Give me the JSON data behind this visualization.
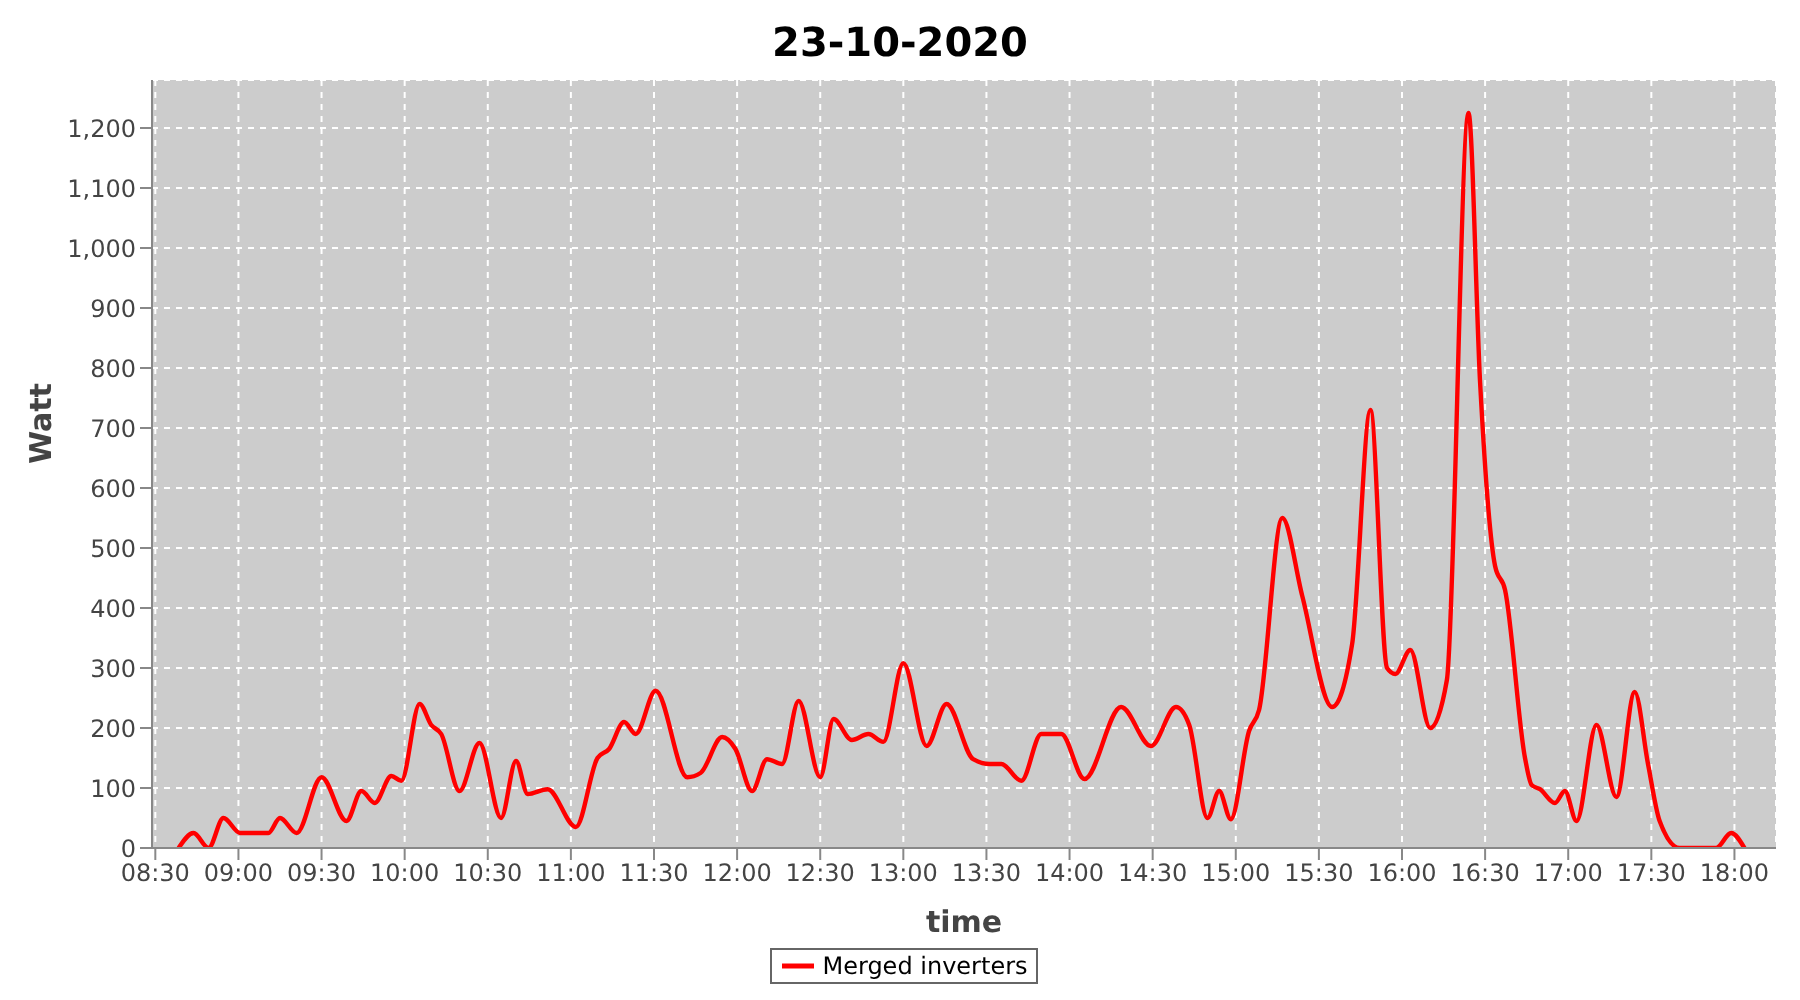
{
  "chart_data": {
    "type": "line",
    "title": "23-10-2020",
    "xlabel": "time",
    "ylabel": "Watt",
    "x": [
      8.64,
      8.73,
      8.82,
      8.91,
      9.01,
      9.12,
      9.18,
      9.25,
      9.35,
      9.5,
      9.65,
      9.74,
      9.82,
      9.92,
      9.98,
      10.09,
      10.16,
      10.22,
      10.33,
      10.45,
      10.58,
      10.67,
      10.74,
      10.86,
      11.03,
      11.16,
      11.23,
      11.32,
      11.39,
      11.51,
      11.7,
      11.78,
      11.91,
      11.99,
      12.09,
      12.18,
      12.27,
      12.37,
      12.5,
      12.58,
      12.69,
      12.79,
      12.88,
      13.0,
      13.14,
      13.26,
      13.42,
      13.52,
      13.59,
      13.71,
      13.83,
      13.95,
      14.09,
      14.31,
      14.49,
      14.64,
      14.72,
      14.83,
      14.9,
      14.97,
      15.08,
      15.14,
      15.28,
      15.4,
      15.58,
      15.7,
      15.81,
      15.91,
      15.96,
      16.05,
      16.17,
      16.27,
      16.4,
      16.47,
      16.56,
      16.62,
      16.74,
      16.78,
      16.83,
      16.92,
      16.98,
      17.05,
      17.17,
      17.29,
      17.4,
      17.48,
      17.55,
      17.67,
      17.82,
      17.89,
      17.98,
      18.06
    ],
    "series": [
      {
        "name": "Merged inverters",
        "color": "#ff0000",
        "values": [
          0,
          25,
          0,
          50,
          25,
          25,
          25,
          50,
          25,
          118,
          45,
          95,
          75,
          120,
          112,
          240,
          205,
          190,
          95,
          175,
          50,
          145,
          90,
          98,
          35,
          150,
          165,
          210,
          190,
          262,
          118,
          125,
          185,
          165,
          95,
          148,
          140,
          245,
          118,
          215,
          180,
          190,
          177,
          308,
          170,
          240,
          148,
          140,
          140,
          112,
          190,
          190,
          115,
          235,
          170,
          235,
          205,
          50,
          95,
          48,
          195,
          230,
          550,
          420,
          235,
          340,
          730,
          300,
          290,
          330,
          200,
          280,
          1225,
          775,
          470,
          430,
          150,
          105,
          98,
          75,
          95,
          45,
          205,
          85,
          260,
          140,
          45,
          0,
          0,
          0,
          25,
          0
        ]
      }
    ],
    "xlim": [
      8.48,
      18.25
    ],
    "xticks": [
      {
        "value": 8.5,
        "label": "08:30"
      },
      {
        "value": 9,
        "label": "09:00"
      },
      {
        "value": 9.5,
        "label": "09:30"
      },
      {
        "value": 10,
        "label": "10:00"
      },
      {
        "value": 10.5,
        "label": "10:30"
      },
      {
        "value": 11,
        "label": "11:00"
      },
      {
        "value": 11.5,
        "label": "11:30"
      },
      {
        "value": 12,
        "label": "12:00"
      },
      {
        "value": 12.5,
        "label": "12:30"
      },
      {
        "value": 13,
        "label": "13:00"
      },
      {
        "value": 13.5,
        "label": "13:30"
      },
      {
        "value": 14,
        "label": "14:00"
      },
      {
        "value": 14.5,
        "label": "14:30"
      },
      {
        "value": 15,
        "label": "15:00"
      },
      {
        "value": 15.5,
        "label": "15:30"
      },
      {
        "value": 16,
        "label": "16:00"
      },
      {
        "value": 16.5,
        "label": "16:30"
      },
      {
        "value": 17,
        "label": "17:00"
      },
      {
        "value": 17.5,
        "label": "17:30"
      },
      {
        "value": 18,
        "label": "18:00"
      }
    ],
    "ylim": [
      0,
      1280
    ],
    "yticks": [
      0,
      100,
      200,
      300,
      400,
      500,
      600,
      700,
      800,
      900,
      {
        "value": 1000,
        "label": "1,000"
      },
      {
        "value": 1100,
        "label": "1,100"
      },
      {
        "value": 1200,
        "label": "1,200"
      }
    ],
    "grid": true,
    "legend": "bottom",
    "marker": "none",
    "line_style": "solid"
  }
}
